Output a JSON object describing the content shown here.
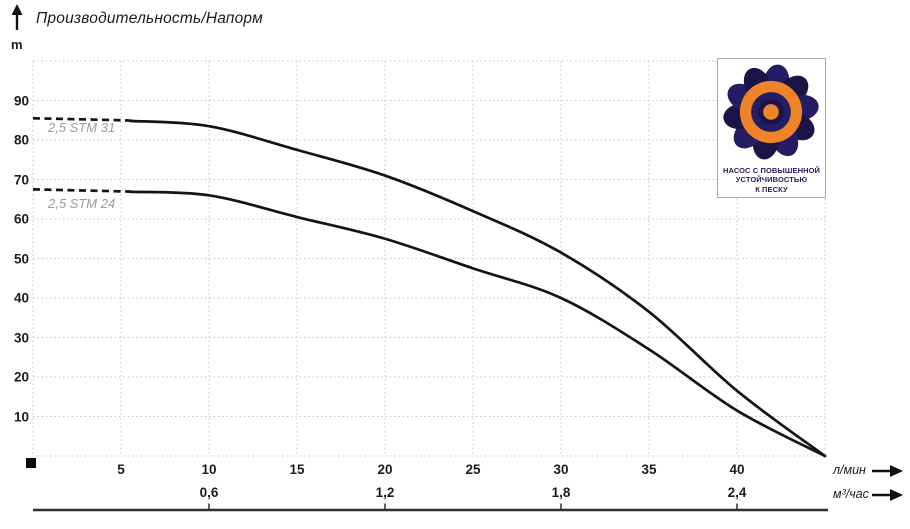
{
  "title": "Производительность/Напорм",
  "y_axis_unit": "m",
  "curve_labels": {
    "c1": "2,5 STM 31",
    "c2": "2,5 STM 24"
  },
  "x_axis_units": {
    "primary": "л/мин",
    "secondary": "м³/час"
  },
  "badge": {
    "line1": "НАСОС С ПОВЫШЕННОЙ",
    "line2": "УСТОЙЧИВОСТЬЮ",
    "line3": "К ПЕСКУ"
  },
  "colors": {
    "curve": "#141414",
    "grid": "#c6c6c6",
    "label_gray": "#9b9b9b",
    "text": "#1c1c1c",
    "axis_line": "#2e2e2e",
    "badge_navy": "#251d63",
    "badge_navy_dark": "#1a1447",
    "badge_orange": "#ef8329"
  },
  "chart_data": {
    "type": "line",
    "title": "Производительность/Напорм",
    "ylabel": "m",
    "xlabel_primary": "л/мин",
    "xlabel_secondary": "м³/час",
    "x_range": [
      0,
      45
    ],
    "y_range": [
      0,
      100
    ],
    "grid": true,
    "x_ticks_lmin": [
      5,
      10,
      15,
      20,
      25,
      30,
      35,
      40
    ],
    "x_ticks_m3h": [
      "0,6",
      "1,2",
      "1,8",
      "2,4"
    ],
    "x_ticks_m3h_at_lmin": [
      10,
      20,
      30,
      40
    ],
    "y_ticks": [
      10,
      20,
      30,
      40,
      50,
      60,
      70,
      80,
      90
    ],
    "dashed_until_lmin": 5.5,
    "series": [
      {
        "name": "2,5 STM 31",
        "points": [
          [
            0,
            85.5
          ],
          [
            5,
            85
          ],
          [
            10,
            83.5
          ],
          [
            15,
            77.5
          ],
          [
            20,
            71
          ],
          [
            25,
            62
          ],
          [
            30,
            51.5
          ],
          [
            35,
            36.5
          ],
          [
            40,
            16.5
          ],
          [
            45,
            0
          ]
        ]
      },
      {
        "name": "2,5 STM 24",
        "points": [
          [
            0,
            67.5
          ],
          [
            5,
            67
          ],
          [
            10,
            66
          ],
          [
            15,
            60.5
          ],
          [
            20,
            55
          ],
          [
            25,
            47.5
          ],
          [
            30,
            40
          ],
          [
            35,
            27
          ],
          [
            40,
            11.5
          ],
          [
            45,
            0
          ]
        ]
      }
    ]
  }
}
